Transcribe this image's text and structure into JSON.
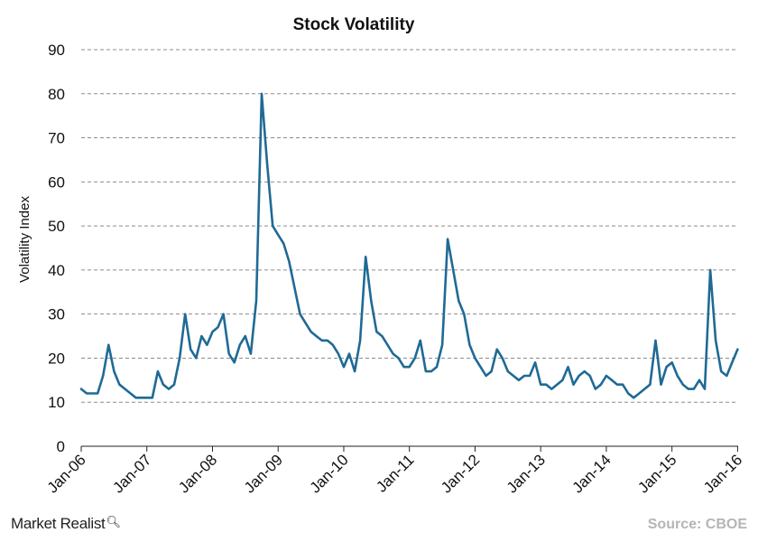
{
  "brand": {
    "name": "Market Realist",
    "icon": "magnifier-icon"
  },
  "source": "Source: CBOE",
  "colors": {
    "series": "#1f6a96",
    "grid": "#8c8c8c",
    "axis": "#222222"
  },
  "chart_data": {
    "type": "line",
    "title": "Stock Volatility",
    "ylabel": "Volatility Index",
    "xlabel": "",
    "ylim": [
      0,
      90
    ],
    "yticks": [
      0,
      10,
      20,
      30,
      40,
      50,
      60,
      70,
      80,
      90
    ],
    "xlim": [
      "2006-01",
      "2016-01"
    ],
    "xticks": [
      "Jan-06",
      "Jan-07",
      "Jan-08",
      "Jan-09",
      "Jan-10",
      "Jan-11",
      "Jan-12",
      "Jan-13",
      "Jan-14",
      "Jan-15",
      "Jan-16"
    ],
    "grid": "horizontal dashed",
    "legend": "none",
    "series": [
      {
        "x": [
          "2006-01",
          "2006-02",
          "2006-03",
          "2006-04",
          "2006-05",
          "2006-06",
          "2006-07",
          "2006-08",
          "2006-09",
          "2006-10",
          "2006-11",
          "2006-12",
          "2007-01",
          "2007-02",
          "2007-03",
          "2007-04",
          "2007-05",
          "2007-06",
          "2007-07",
          "2007-08",
          "2007-09",
          "2007-10",
          "2007-11",
          "2007-12",
          "2008-01",
          "2008-02",
          "2008-03",
          "2008-04",
          "2008-05",
          "2008-06",
          "2008-07",
          "2008-08",
          "2008-09",
          "2008-10",
          "2008-11",
          "2008-12",
          "2009-01",
          "2009-02",
          "2009-03",
          "2009-04",
          "2009-05",
          "2009-06",
          "2009-07",
          "2009-08",
          "2009-09",
          "2009-10",
          "2009-11",
          "2009-12",
          "2010-01",
          "2010-02",
          "2010-03",
          "2010-04",
          "2010-05",
          "2010-06",
          "2010-07",
          "2010-08",
          "2010-09",
          "2010-10",
          "2010-11",
          "2010-12",
          "2011-01",
          "2011-02",
          "2011-03",
          "2011-04",
          "2011-05",
          "2011-06",
          "2011-07",
          "2011-08",
          "2011-09",
          "2011-10",
          "2011-11",
          "2011-12",
          "2012-01",
          "2012-02",
          "2012-03",
          "2012-04",
          "2012-05",
          "2012-06",
          "2012-07",
          "2012-08",
          "2012-09",
          "2012-10",
          "2012-11",
          "2012-12",
          "2013-01",
          "2013-02",
          "2013-03",
          "2013-04",
          "2013-05",
          "2013-06",
          "2013-07",
          "2013-08",
          "2013-09",
          "2013-10",
          "2013-11",
          "2013-12",
          "2014-01",
          "2014-02",
          "2014-03",
          "2014-04",
          "2014-05",
          "2014-06",
          "2014-07",
          "2014-08",
          "2014-09",
          "2014-10",
          "2014-11",
          "2014-12",
          "2015-01",
          "2015-02",
          "2015-03",
          "2015-04",
          "2015-05",
          "2015-06",
          "2015-07",
          "2015-08",
          "2015-09",
          "2015-10",
          "2015-11",
          "2015-12",
          "2016-01"
        ],
        "values": [
          13,
          12,
          12,
          12,
          16,
          23,
          17,
          14,
          13,
          12,
          11,
          11,
          11,
          11,
          17,
          14,
          13,
          14,
          20,
          30,
          22,
          20,
          25,
          23,
          26,
          27,
          30,
          21,
          19,
          23,
          25,
          21,
          33,
          80,
          64,
          50,
          48,
          46,
          42,
          36,
          30,
          28,
          26,
          25,
          24,
          24,
          23,
          21,
          18,
          21,
          17,
          24,
          43,
          33,
          26,
          25,
          23,
          21,
          20,
          18,
          18,
          20,
          24,
          17,
          17,
          18,
          23,
          47,
          40,
          33,
          30,
          23,
          20,
          18,
          16,
          17,
          22,
          20,
          17,
          16,
          15,
          16,
          16,
          19,
          14,
          14,
          13,
          14,
          15,
          18,
          14,
          16,
          17,
          16,
          13,
          14,
          16,
          15,
          14,
          14,
          12,
          11,
          12,
          13,
          14,
          24,
          14,
          18,
          19,
          16,
          14,
          13,
          13,
          15,
          13,
          40,
          24,
          17,
          16,
          19,
          22
        ]
      }
    ]
  }
}
